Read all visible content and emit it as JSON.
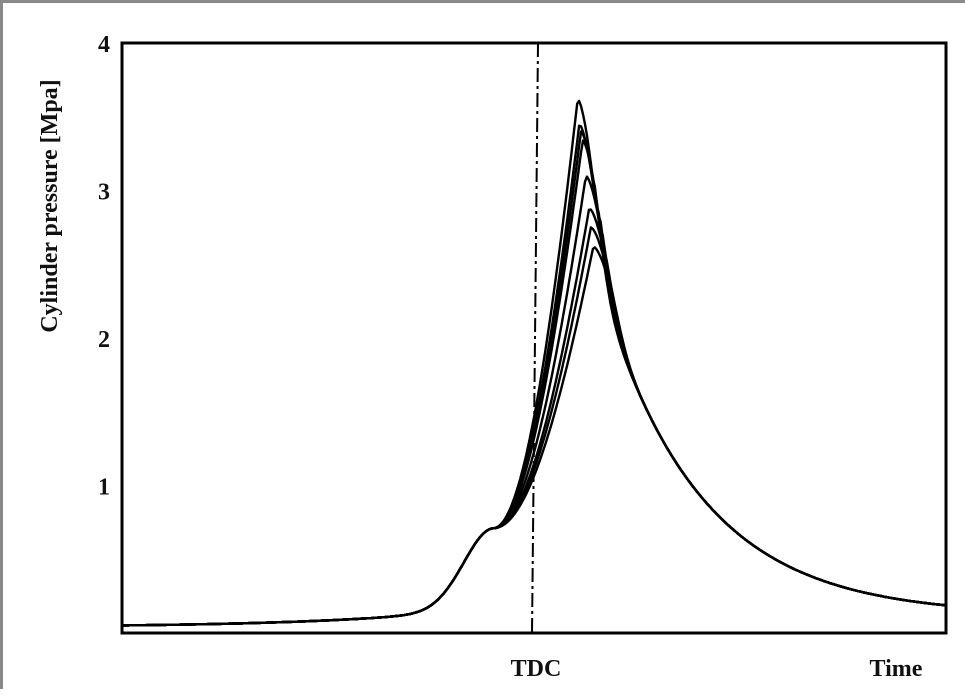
{
  "chart_data": {
    "type": "line",
    "title": "",
    "xlabel": "Time",
    "ylabel": "Cylinder pressure [Mpa]",
    "ylim": [
      0,
      4
    ],
    "yticks": [
      1,
      2,
      3,
      4
    ],
    "xticks": [
      {
        "x": 0.5,
        "label": "TDC"
      }
    ],
    "vline": {
      "x": 0.5,
      "style": "dash-dot"
    },
    "grid": false,
    "legend": "none",
    "colors": {
      "line": "#000000",
      "axis": "#000000"
    },
    "series": [
      {
        "peak_x": 0.553,
        "peak": 3.62
      },
      {
        "peak_x": 0.555,
        "peak": 3.45
      },
      {
        "peak_x": 0.557,
        "peak": 3.4
      },
      {
        "peak_x": 0.559,
        "peak": 3.34
      },
      {
        "peak_x": 0.563,
        "peak": 3.1
      },
      {
        "peak_x": 0.567,
        "peak": 2.88
      },
      {
        "peak_x": 0.569,
        "peak": 2.75
      },
      {
        "peak_x": 0.572,
        "peak": 2.62
      }
    ]
  }
}
